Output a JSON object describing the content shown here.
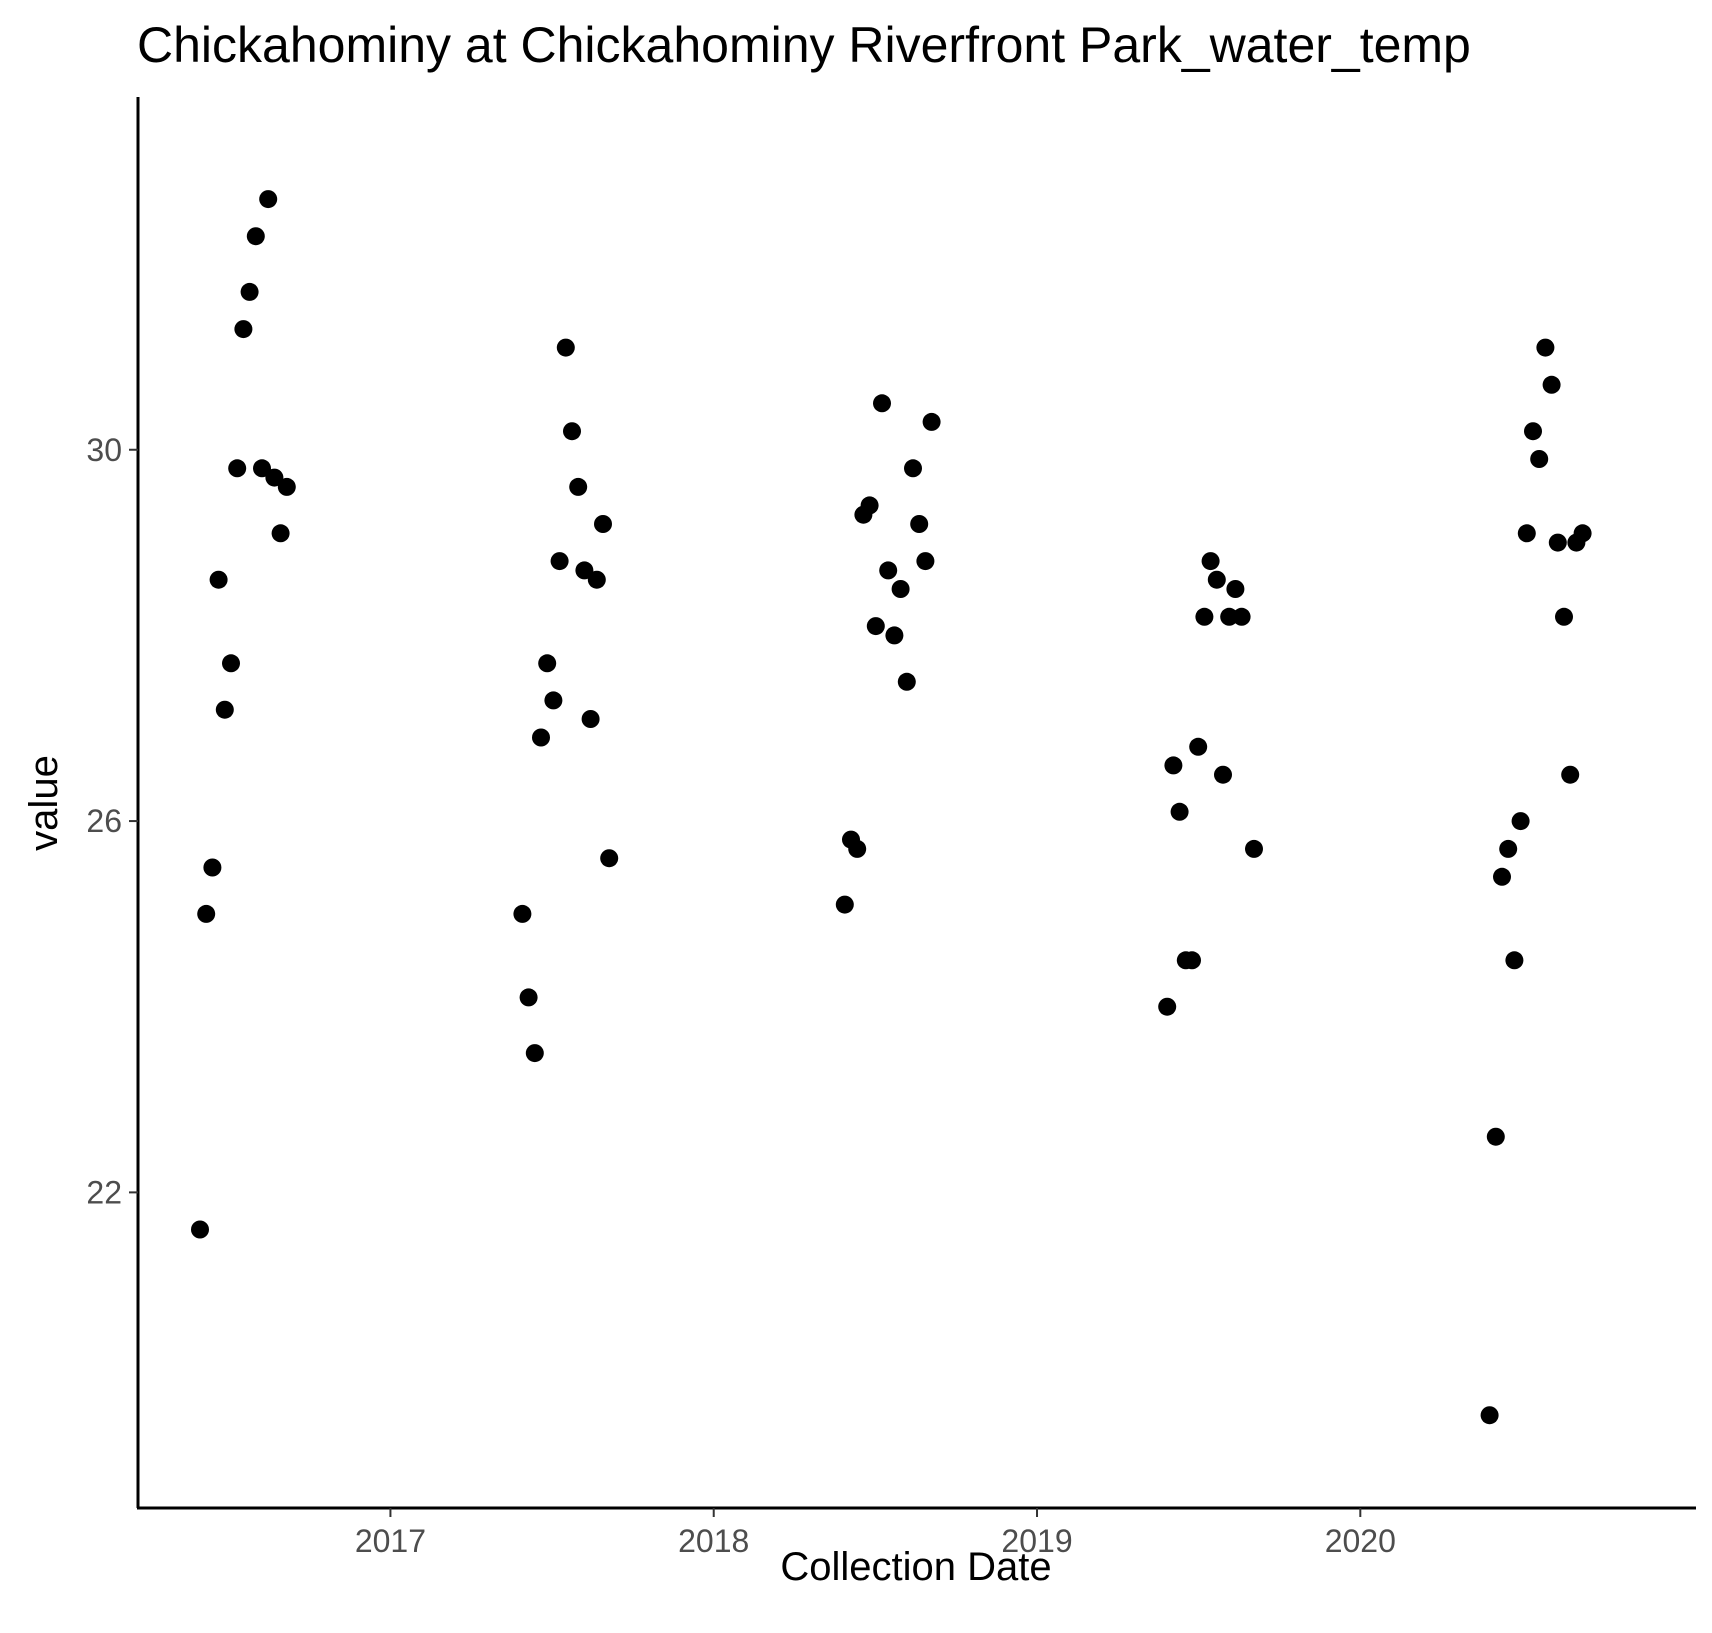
{
  "chart_data": {
    "type": "scatter",
    "title": "Chickahominy at Chickahominy Riverfront Park_water_temp",
    "xlabel": "Collection Date",
    "ylabel": "value",
    "x_axis_type": "date",
    "xlim": [
      "2016-03-22",
      "2021-01-14"
    ],
    "ylim": [
      18.6,
      33.8
    ],
    "x_ticks": [
      "2017",
      "2018",
      "2019",
      "2020"
    ],
    "y_ticks": [
      22,
      26,
      30
    ],
    "grid": false,
    "legend": "none",
    "point_color": "#000000",
    "series": [
      {
        "points": [
          [
            "2016-05-31",
            21.6
          ],
          [
            "2016-06-07",
            25.0
          ],
          [
            "2016-06-14",
            25.5
          ],
          [
            "2016-06-21",
            28.6
          ],
          [
            "2016-06-28",
            27.2
          ],
          [
            "2016-07-05",
            27.7
          ],
          [
            "2016-07-12",
            29.8
          ],
          [
            "2016-07-19",
            31.3
          ],
          [
            "2016-07-26",
            31.7
          ],
          [
            "2016-08-02",
            32.3
          ],
          [
            "2016-08-09",
            29.8
          ],
          [
            "2016-08-16",
            32.7
          ],
          [
            "2016-08-23",
            29.7
          ],
          [
            "2016-08-30",
            29.1
          ],
          [
            "2016-09-06",
            29.6
          ],
          [
            "2017-05-30",
            25.0
          ],
          [
            "2017-06-06",
            24.1
          ],
          [
            "2017-06-13",
            23.5
          ],
          [
            "2017-06-20",
            26.9
          ],
          [
            "2017-06-27",
            27.7
          ],
          [
            "2017-07-04",
            27.3
          ],
          [
            "2017-07-11",
            28.8
          ],
          [
            "2017-07-18",
            31.1
          ],
          [
            "2017-07-25",
            30.2
          ],
          [
            "2017-08-01",
            29.6
          ],
          [
            "2017-08-08",
            28.7
          ],
          [
            "2017-08-15",
            27.1
          ],
          [
            "2017-08-22",
            28.6
          ],
          [
            "2017-08-29",
            29.2
          ],
          [
            "2017-09-05",
            25.6
          ],
          [
            "2018-05-29",
            25.1
          ],
          [
            "2018-06-05",
            25.8
          ],
          [
            "2018-06-12",
            25.7
          ],
          [
            "2018-06-19",
            29.3
          ],
          [
            "2018-06-26",
            29.4
          ],
          [
            "2018-07-03",
            28.1
          ],
          [
            "2018-07-10",
            30.5
          ],
          [
            "2018-07-17",
            28.7
          ],
          [
            "2018-07-24",
            28.0
          ],
          [
            "2018-07-31",
            28.5
          ],
          [
            "2018-08-07",
            27.5
          ],
          [
            "2018-08-14",
            29.8
          ],
          [
            "2018-08-21",
            29.2
          ],
          [
            "2018-08-28",
            28.8
          ],
          [
            "2018-09-04",
            30.3
          ],
          [
            "2019-05-28",
            24.0
          ],
          [
            "2019-06-04",
            26.6
          ],
          [
            "2019-06-11",
            26.1
          ],
          [
            "2019-06-18",
            24.5
          ],
          [
            "2019-06-25",
            24.5
          ],
          [
            "2019-07-02",
            26.8
          ],
          [
            "2019-07-09",
            28.2
          ],
          [
            "2019-07-16",
            28.8
          ],
          [
            "2019-07-23",
            28.6
          ],
          [
            "2019-07-30",
            26.5
          ],
          [
            "2019-08-06",
            28.2
          ],
          [
            "2019-08-13",
            28.5
          ],
          [
            "2019-08-20",
            28.2
          ],
          [
            "2019-09-03",
            25.7
          ],
          [
            "2020-05-26",
            19.6
          ],
          [
            "2020-06-02",
            22.6
          ],
          [
            "2020-06-09",
            25.4
          ],
          [
            "2020-06-16",
            25.7
          ],
          [
            "2020-06-23",
            24.5
          ],
          [
            "2020-06-30",
            26.0
          ],
          [
            "2020-07-07",
            29.1
          ],
          [
            "2020-07-14",
            30.2
          ],
          [
            "2020-07-21",
            29.9
          ],
          [
            "2020-07-28",
            31.1
          ],
          [
            "2020-08-04",
            30.7
          ],
          [
            "2020-08-11",
            29.0
          ],
          [
            "2020-08-18",
            28.2
          ],
          [
            "2020-08-25",
            26.5
          ],
          [
            "2020-09-01",
            29.0
          ],
          [
            "2020-09-08",
            29.1
          ]
        ]
      }
    ]
  }
}
